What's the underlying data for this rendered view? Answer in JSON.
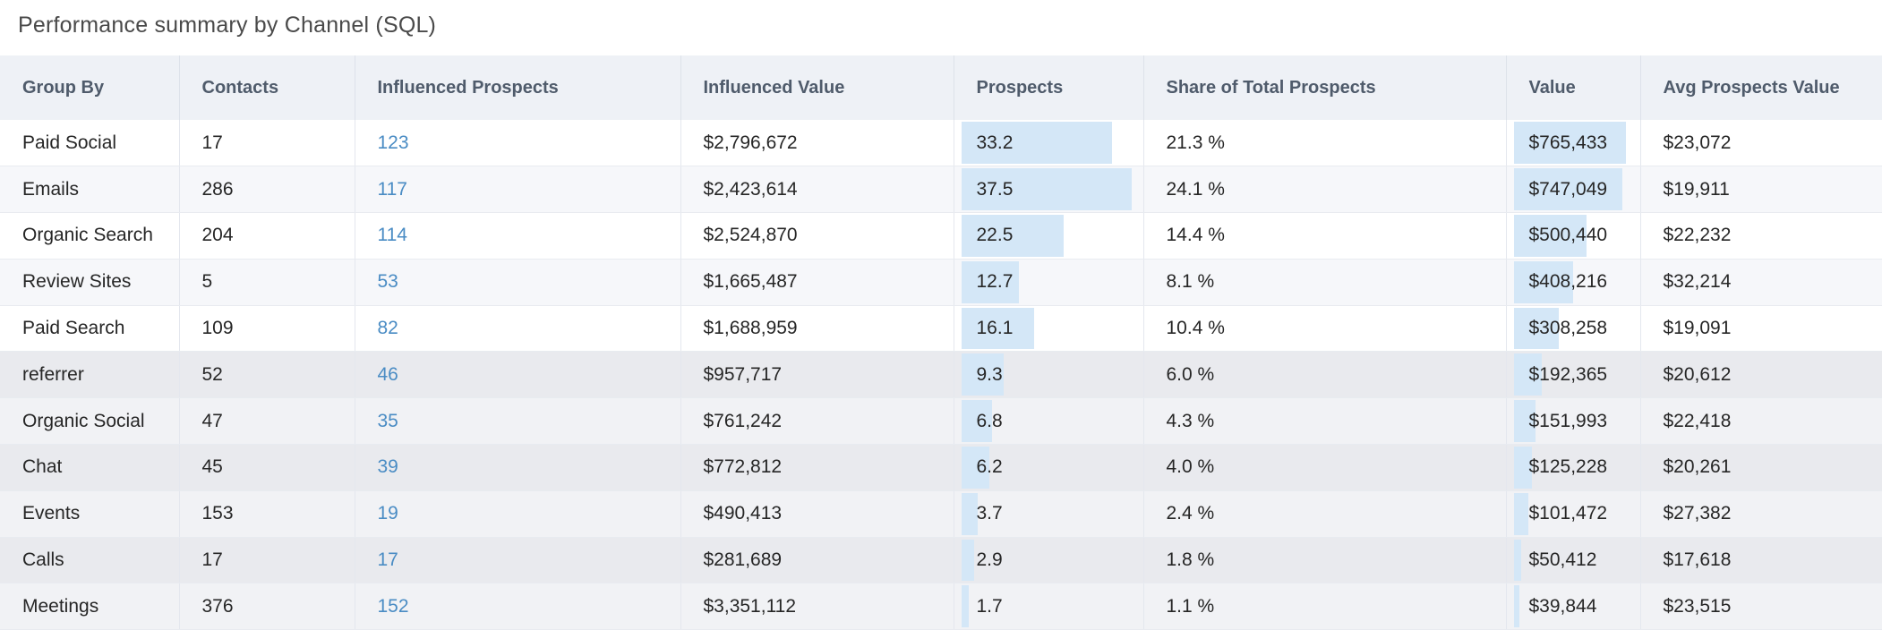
{
  "title": "Performance summary by Channel (SQL)",
  "columns": [
    "Group By",
    "Contacts",
    "Influenced Prospects",
    "Influenced Value",
    "Prospects",
    "Share of Total Prospects",
    "Value",
    "Avg Prospects Value"
  ],
  "colors": {
    "link": "#4a8cc4",
    "bar": "#d4e7f7",
    "header_bg": "#eef1f6"
  },
  "rows": [
    {
      "group": "Paid Social",
      "contacts": "17",
      "influenced_prospects": "123",
      "influenced_value": "$2,796,672",
      "prospects": "33.2",
      "share": "21.3 %",
      "value": "$765,433",
      "avg_value": "$23,072"
    },
    {
      "group": "Emails",
      "contacts": "286",
      "influenced_prospects": "117",
      "influenced_value": "$2,423,614",
      "prospects": "37.5",
      "share": "24.1 %",
      "value": "$747,049",
      "avg_value": "$19,911"
    },
    {
      "group": "Organic Search",
      "contacts": "204",
      "influenced_prospects": "114",
      "influenced_value": "$2,524,870",
      "prospects": "22.5",
      "share": "14.4 %",
      "value": "$500,440",
      "avg_value": "$22,232"
    },
    {
      "group": "Review Sites",
      "contacts": "5",
      "influenced_prospects": "53",
      "influenced_value": "$1,665,487",
      "prospects": "12.7",
      "share": "8.1 %",
      "value": "$408,216",
      "avg_value": "$32,214"
    },
    {
      "group": "Paid Search",
      "contacts": "109",
      "influenced_prospects": "82",
      "influenced_value": "$1,688,959",
      "prospects": "16.1",
      "share": "10.4 %",
      "value": "$308,258",
      "avg_value": "$19,091"
    },
    {
      "group": "referrer",
      "contacts": "52",
      "influenced_prospects": "46",
      "influenced_value": "$957,717",
      "prospects": "9.3",
      "share": "6.0 %",
      "value": "$192,365",
      "avg_value": "$20,612"
    },
    {
      "group": "Organic Social",
      "contacts": "47",
      "influenced_prospects": "35",
      "influenced_value": "$761,242",
      "prospects": "6.8",
      "share": "4.3 %",
      "value": "$151,993",
      "avg_value": "$22,418"
    },
    {
      "group": "Chat",
      "contacts": "45",
      "influenced_prospects": "39",
      "influenced_value": "$772,812",
      "prospects": "6.2",
      "share": "4.0 %",
      "value": "$125,228",
      "avg_value": "$20,261"
    },
    {
      "group": "Events",
      "contacts": "153",
      "influenced_prospects": "19",
      "influenced_value": "$490,413",
      "prospects": "3.7",
      "share": "2.4 %",
      "value": "$101,472",
      "avg_value": "$27,382"
    },
    {
      "group": "Calls",
      "contacts": "17",
      "influenced_prospects": "17",
      "influenced_value": "$281,689",
      "prospects": "2.9",
      "share": "1.8 %",
      "value": "$50,412",
      "avg_value": "$17,618"
    },
    {
      "group": "Meetings",
      "contacts": "376",
      "influenced_prospects": "152",
      "influenced_value": "$3,351,112",
      "prospects": "1.7",
      "share": "1.1 %",
      "value": "$39,844",
      "avg_value": "$23,515"
    }
  ]
}
